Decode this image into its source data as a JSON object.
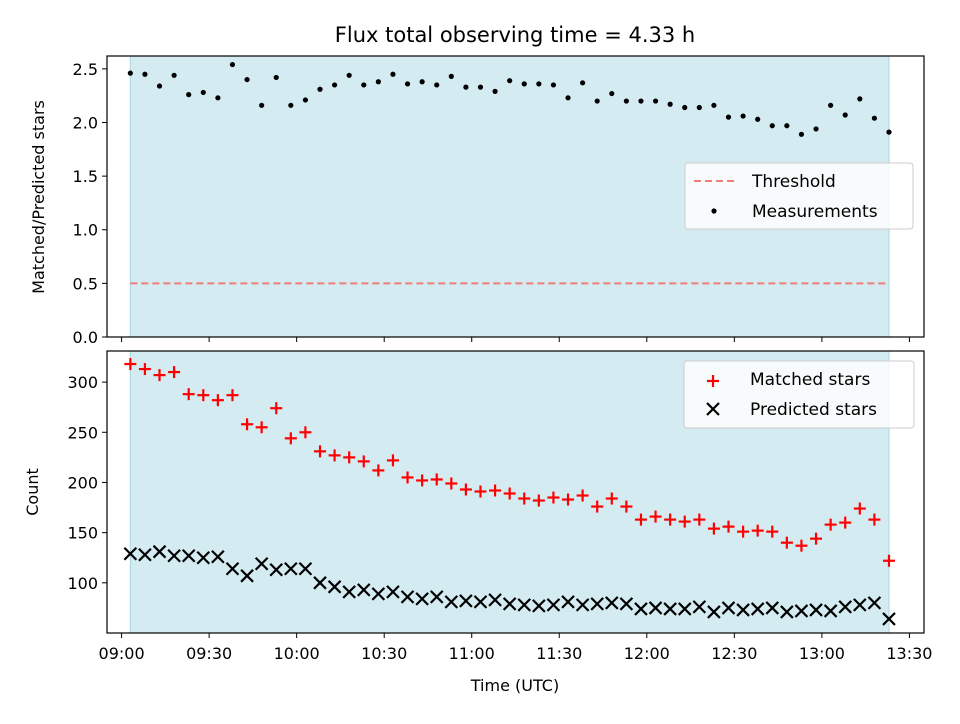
{
  "chart_data": [
    {
      "type": "scatter",
      "title": "Flux total observing time = 4.33 h",
      "xlabel": "",
      "ylabel": "Matched/Predicted stars",
      "xlim": [
        "08:55",
        "13:35"
      ],
      "ylim": [
        0.0,
        2.62
      ],
      "yticks": [
        "0.0",
        "0.5",
        "1.0",
        "1.5",
        "2.0",
        "2.5"
      ],
      "grid": false,
      "legend": "center-right",
      "observing_window": [
        "09:03",
        "13:23"
      ],
      "observing_window_color": "#d4ebf1",
      "series": [
        {
          "name": "Threshold",
          "style": "dashed-line",
          "color": "#f07c7c",
          "x": [
            "09:03",
            "13:23"
          ],
          "values": [
            0.5,
            0.5
          ]
        },
        {
          "name": "Measurements",
          "style": "dot",
          "color": "#000000",
          "x": [
            "09:03",
            "09:08",
            "09:13",
            "09:18",
            "09:23",
            "09:28",
            "09:33",
            "09:38",
            "09:43",
            "09:48",
            "09:53",
            "09:58",
            "10:03",
            "10:08",
            "10:13",
            "10:18",
            "10:23",
            "10:28",
            "10:33",
            "10:38",
            "10:43",
            "10:48",
            "10:53",
            "10:58",
            "11:03",
            "11:08",
            "11:13",
            "11:18",
            "11:23",
            "11:28",
            "11:33",
            "11:38",
            "11:43",
            "11:48",
            "11:53",
            "11:58",
            "12:03",
            "12:08",
            "12:13",
            "12:18",
            "12:23",
            "12:28",
            "12:33",
            "12:38",
            "12:43",
            "12:48",
            "12:53",
            "12:58",
            "13:03",
            "13:08",
            "13:13",
            "13:18",
            "13:23"
          ],
          "values": [
            2.46,
            2.45,
            2.34,
            2.44,
            2.26,
            2.28,
            2.23,
            2.54,
            2.4,
            2.16,
            2.42,
            2.16,
            2.21,
            2.31,
            2.35,
            2.44,
            2.35,
            2.38,
            2.45,
            2.36,
            2.38,
            2.35,
            2.43,
            2.33,
            2.33,
            2.29,
            2.39,
            2.36,
            2.36,
            2.35,
            2.23,
            2.37,
            2.2,
            2.27,
            2.2,
            2.2,
            2.2,
            2.17,
            2.14,
            2.14,
            2.16,
            2.05,
            2.06,
            2.03,
            1.97,
            1.97,
            1.89,
            1.94,
            2.16,
            2.07,
            2.22,
            2.04,
            1.91
          ]
        }
      ]
    },
    {
      "type": "scatter",
      "title": "",
      "xlabel": "Time (UTC)",
      "ylabel": "Count",
      "xlim": [
        "08:55",
        "13:35"
      ],
      "ylim": [
        50,
        331
      ],
      "yticks": [
        "100",
        "150",
        "200",
        "250",
        "300"
      ],
      "xticks": [
        "09:00",
        "09:30",
        "10:00",
        "10:30",
        "11:00",
        "11:30",
        "12:00",
        "12:30",
        "13:00",
        "13:30"
      ],
      "grid": false,
      "legend": "top-right",
      "observing_window": [
        "09:03",
        "13:23"
      ],
      "observing_window_color": "#d4ebf1",
      "series": [
        {
          "name": "Matched stars",
          "style": "plus",
          "color": "#ff0000",
          "x": [
            "09:03",
            "09:08",
            "09:13",
            "09:18",
            "09:23",
            "09:28",
            "09:33",
            "09:38",
            "09:43",
            "09:48",
            "09:53",
            "09:58",
            "10:03",
            "10:08",
            "10:13",
            "10:18",
            "10:23",
            "10:28",
            "10:33",
            "10:38",
            "10:43",
            "10:48",
            "10:53",
            "10:58",
            "11:03",
            "11:08",
            "11:13",
            "11:18",
            "11:23",
            "11:28",
            "11:33",
            "11:38",
            "11:43",
            "11:48",
            "11:53",
            "11:58",
            "12:03",
            "12:08",
            "12:13",
            "12:18",
            "12:23",
            "12:28",
            "12:33",
            "12:38",
            "12:43",
            "12:48",
            "12:53",
            "12:58",
            "13:03",
            "13:08",
            "13:13",
            "13:18",
            "13:23"
          ],
          "values": [
            318,
            313,
            307,
            310,
            288,
            287,
            282,
            287,
            258,
            255,
            274,
            244,
            250,
            231,
            227,
            225,
            221,
            212,
            222,
            205,
            202,
            203,
            199,
            193,
            191,
            192,
            189,
            184,
            182,
            185,
            183,
            187,
            176,
            184,
            176,
            163,
            166,
            163,
            161,
            163,
            154,
            156,
            151,
            152,
            151,
            140,
            137,
            144,
            158,
            160,
            174,
            163,
            122
          ]
        },
        {
          "name": "Predicted stars",
          "style": "x",
          "color": "#000000",
          "x": [
            "09:03",
            "09:08",
            "09:13",
            "09:18",
            "09:23",
            "09:28",
            "09:33",
            "09:38",
            "09:43",
            "09:48",
            "09:53",
            "09:58",
            "10:03",
            "10:08",
            "10:13",
            "10:18",
            "10:23",
            "10:28",
            "10:33",
            "10:38",
            "10:43",
            "10:48",
            "10:53",
            "10:58",
            "11:03",
            "11:08",
            "11:13",
            "11:18",
            "11:23",
            "11:28",
            "11:33",
            "11:38",
            "11:43",
            "11:48",
            "11:53",
            "11:58",
            "12:03",
            "12:08",
            "12:13",
            "12:18",
            "12:23",
            "12:28",
            "12:33",
            "12:38",
            "12:43",
            "12:48",
            "12:53",
            "12:58",
            "13:03",
            "13:08",
            "13:13",
            "13:18",
            "13:23"
          ],
          "values": [
            129,
            128,
            131,
            127,
            127,
            125,
            126,
            114,
            107,
            119,
            113,
            114,
            114,
            100,
            96,
            91,
            93,
            89,
            91,
            86,
            84,
            86,
            81,
            82,
            81,
            83,
            79,
            78,
            77,
            78,
            81,
            78,
            79,
            80,
            79,
            74,
            75,
            74,
            74,
            76,
            71,
            75,
            73,
            74,
            75,
            71,
            72,
            73,
            72,
            76,
            78,
            80,
            64
          ]
        }
      ]
    }
  ]
}
